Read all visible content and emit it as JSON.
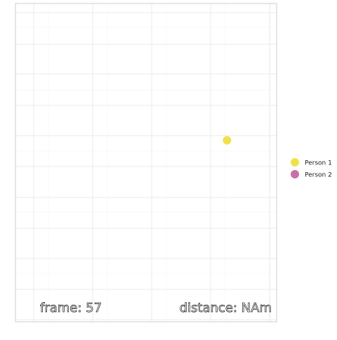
{
  "chart_data": {
    "type": "scatter",
    "title": "",
    "xlabel": "",
    "ylabel": "",
    "grid": true,
    "legend_placement": "right",
    "series": [
      {
        "name": "Person 1",
        "color": "#f1e04b",
        "points": [
          {
            "x": 0.81,
            "y": 0.43
          }
        ]
      },
      {
        "name": "Person 2",
        "color": "#c870a5",
        "points": []
      }
    ],
    "annotations": {
      "frame": "frame: 57",
      "distance": "distance: NAm"
    },
    "panel_border_color": "#cccccc",
    "grid_major_color": "#ebebeb",
    "grid_minor_color": "#f5f5f5"
  }
}
